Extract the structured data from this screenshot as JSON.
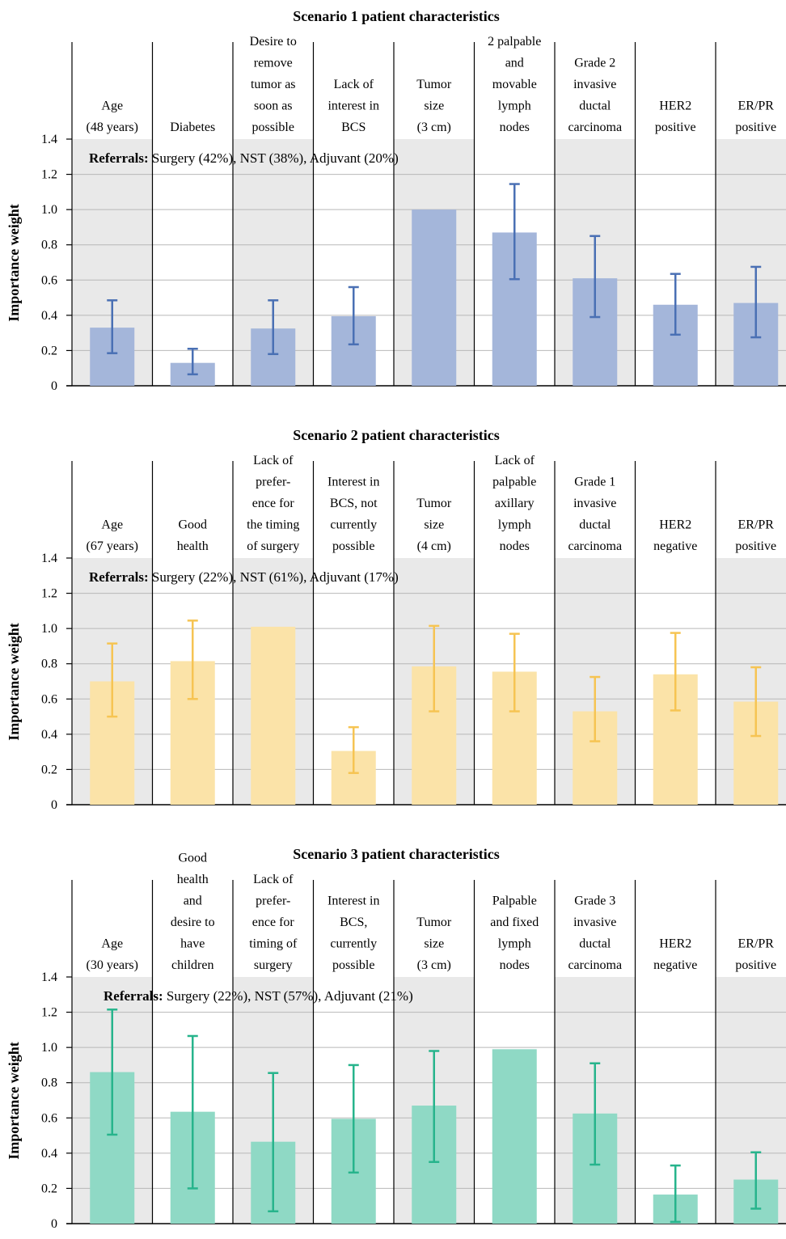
{
  "chart_data": [
    {
      "type": "bar",
      "title": "Scenario 1 patient characteristics",
      "ylabel": "Importance weight",
      "ylim": [
        0,
        1.4
      ],
      "yticks": [
        "0",
        "0.2",
        "0.4",
        "0.6",
        "0.8",
        "1.0",
        "1.2",
        "1.4"
      ],
      "grid": true,
      "categories": [
        [
          "Age",
          "(48 years)"
        ],
        [
          "Diabetes"
        ],
        [
          "Desire to",
          "remove",
          "tumor as",
          "soon as",
          "possible"
        ],
        [
          "Lack of",
          "interest in",
          "BCS"
        ],
        [
          "Tumor",
          "size",
          "(3 cm)"
        ],
        [
          "2 palpable",
          "and",
          "movable",
          "lymph",
          "nodes"
        ],
        [
          "Grade 2",
          "invasive",
          "ductal",
          "carcinoma"
        ],
        [
          "HER2",
          "positive"
        ],
        [
          "ER/PR",
          "positive"
        ]
      ],
      "values": [
        0.33,
        0.13,
        0.325,
        0.395,
        1.0,
        0.87,
        0.61,
        0.46,
        0.47
      ],
      "error_low": [
        0.185,
        0.065,
        0.18,
        0.235,
        null,
        0.605,
        0.39,
        0.29,
        0.275
      ],
      "error_high": [
        0.485,
        0.21,
        0.485,
        0.56,
        null,
        1.145,
        0.85,
        0.635,
        0.675
      ],
      "annotation_bold": "Referrals:",
      "annotation": " Surgery (42%), NST (38%), Adjuvant (20%)",
      "bar_color": "#a4b6da",
      "error_color": "#4a70b4"
    },
    {
      "type": "bar",
      "title": "Scenario 2 patient characteristics",
      "ylabel": "Importance weight",
      "ylim": [
        0,
        1.4
      ],
      "yticks": [
        "0",
        "0.2",
        "0.4",
        "0.6",
        "0.8",
        "1.0",
        "1.2",
        "1.4"
      ],
      "grid": true,
      "categories": [
        [
          "Age",
          "(67 years)"
        ],
        [
          "Good",
          "health"
        ],
        [
          "Lack of",
          "prefer-",
          "ence for",
          "the timing",
          "of surgery"
        ],
        [
          "Interest in",
          "BCS, not",
          "currently",
          "possible"
        ],
        [
          "Tumor",
          "size",
          "(4 cm)"
        ],
        [
          "Lack of",
          "palpable",
          "axillary",
          "lymph",
          "nodes"
        ],
        [
          "Grade 1",
          "invasive",
          "ductal",
          "carcinoma"
        ],
        [
          "HER2",
          "negative"
        ],
        [
          "ER/PR",
          "positive"
        ]
      ],
      "values": [
        0.7,
        0.815,
        1.01,
        0.305,
        0.785,
        0.755,
        0.53,
        0.74,
        0.585
      ],
      "error_low": [
        0.5,
        0.6,
        null,
        0.18,
        0.53,
        0.53,
        0.36,
        0.535,
        0.39
      ],
      "error_high": [
        0.915,
        1.045,
        null,
        0.44,
        1.015,
        0.97,
        0.725,
        0.975,
        0.78
      ],
      "annotation_bold": "Referrals:",
      "annotation": " Surgery (22%), NST (61%), Adjuvant (17%)",
      "bar_color": "#fbe3a8",
      "error_color": "#f6c453"
    },
    {
      "type": "bar",
      "title": "Scenario 3 patient characteristics",
      "ylabel": "Importance weight",
      "ylim": [
        0,
        1.4
      ],
      "yticks": [
        "0",
        "0.2",
        "0.4",
        "0.6",
        "0.8",
        "1.0",
        "1.2",
        "1.4"
      ],
      "grid": true,
      "categories": [
        [
          "Age",
          "(30 years)"
        ],
        [
          "Good",
          "health",
          "and",
          "desire to",
          "have",
          "children"
        ],
        [
          "Lack of",
          "prefer-",
          "ence for",
          "timing of",
          "surgery"
        ],
        [
          "Interest in",
          "BCS,",
          "currently",
          "possible"
        ],
        [
          "Tumor",
          "size",
          "(3 cm)"
        ],
        [
          "Palpable",
          "and fixed",
          "lymph",
          "nodes"
        ],
        [
          "Grade 3",
          "invasive",
          "ductal",
          "carcinoma"
        ],
        [
          "HER2",
          "negative"
        ],
        [
          "ER/PR",
          "positive"
        ]
      ],
      "values": [
        0.86,
        0.635,
        0.465,
        0.595,
        0.67,
        0.99,
        0.625,
        0.165,
        0.25
      ],
      "error_low": [
        0.505,
        0.2,
        0.07,
        0.29,
        0.35,
        null,
        0.335,
        0.01,
        0.085
      ],
      "error_high": [
        1.215,
        1.065,
        0.855,
        0.9,
        0.98,
        null,
        0.91,
        0.33,
        0.405
      ],
      "annotation_bold": "Referrals:",
      "annotation": " Surgery (22%), NST (57%), Adjuvant (21%)",
      "bar_color": "#8fd9c5",
      "error_color": "#27b48c"
    }
  ]
}
